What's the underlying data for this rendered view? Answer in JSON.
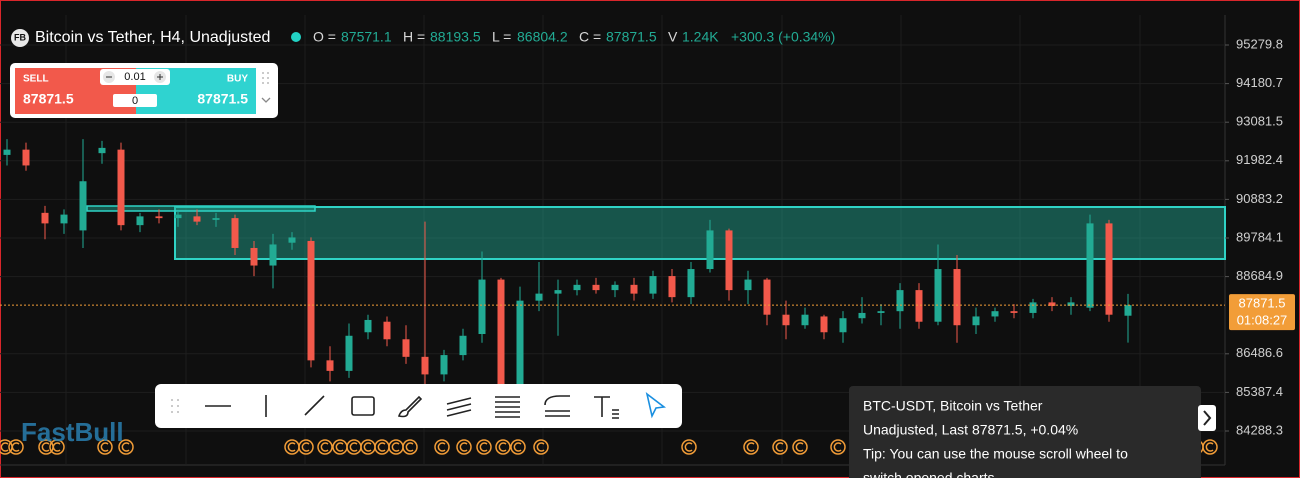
{
  "header": {
    "badge": "FB",
    "symbol": "Bitcoin vs Tether, H4, Unadjusted",
    "labels": [
      "O =",
      "H =",
      "L =",
      "C =",
      "V"
    ],
    "volume": "1.24K",
    "change": "+300.3 (+0.34%)"
  },
  "order_panel": {
    "sell": "SELL",
    "buy": "BUY",
    "lot": "0.01",
    "amount": "0"
  },
  "price_label": {
    "countdown": "01:08:27"
  },
  "tooltip": {
    "lines": [
      "BTC-USDT, Bitcoin vs Tether",
      "Unadjusted, Last 87871.5, +0.04%",
      "Tip: You can use the mouse scroll wheel to",
      "switch opened charts"
    ]
  },
  "logo": "FastBull",
  "chart_data": {
    "type": "candlestick",
    "up_color": "#22ab94",
    "down_color": "#f2594b",
    "ylim": [
      83320,
      96134
    ],
    "yticks": [
      95279.8,
      94180.7,
      93081.5,
      91982.4,
      90883.2,
      89784.1,
      88684.9,
      86486.6,
      85387.4,
      84288.3
    ],
    "grid": true,
    "candles": [
      [
        92150,
        92600,
        91850,
        92300
      ],
      [
        92300,
        92500,
        91700,
        91850
      ],
      [
        90500,
        90700,
        89750,
        90200
      ],
      [
        90200,
        90600,
        89900,
        90450
      ],
      [
        90000,
        92600,
        89500,
        91400
      ],
      [
        92200,
        92550,
        91900,
        92350
      ],
      [
        92300,
        92500,
        90000,
        90150
      ],
      [
        90150,
        90500,
        89950,
        90400
      ],
      [
        90400,
        90600,
        90200,
        90350
      ],
      [
        90350,
        90550,
        90100,
        90450
      ],
      [
        90400,
        90600,
        90150,
        90250
      ],
      [
        90300,
        90500,
        90100,
        90350
      ],
      [
        90350,
        90450,
        89300,
        89500
      ],
      [
        89500,
        89700,
        88700,
        89000
      ],
      [
        89000,
        89900,
        88350,
        89600
      ],
      [
        89650,
        89950,
        89450,
        89800
      ],
      [
        89700,
        89800,
        86100,
        86300
      ],
      [
        86300,
        86700,
        85700,
        86000
      ],
      [
        86000,
        87350,
        85800,
        87000
      ],
      [
        87100,
        87600,
        86900,
        87450
      ],
      [
        87400,
        87550,
        86700,
        86900
      ],
      [
        86900,
        87300,
        86200,
        86400
      ],
      [
        86400,
        90250,
        85600,
        85900
      ],
      [
        85900,
        86600,
        85700,
        86450
      ],
      [
        86450,
        87200,
        86300,
        87000
      ],
      [
        87050,
        89400,
        86800,
        88600
      ],
      [
        88600,
        88650,
        85300,
        85600
      ],
      [
        85600,
        88400,
        85400,
        88000
      ],
      [
        88000,
        89100,
        87700,
        88200
      ],
      [
        88200,
        88600,
        87000,
        88300
      ],
      [
        88300,
        88600,
        88150,
        88450
      ],
      [
        88450,
        88650,
        88200,
        88300
      ],
      [
        88300,
        88550,
        88100,
        88450
      ],
      [
        88450,
        88650,
        88000,
        88200
      ],
      [
        88200,
        88850,
        88050,
        88700
      ],
      [
        88700,
        88900,
        87950,
        88100
      ],
      [
        88100,
        89100,
        87900,
        88900
      ],
      [
        88900,
        90300,
        88800,
        90000
      ],
      [
        90000,
        90050,
        88000,
        88300
      ],
      [
        88300,
        88850,
        87900,
        88600
      ],
      [
        88600,
        88650,
        87300,
        87600
      ],
      [
        87600,
        88000,
        86900,
        87300
      ],
      [
        87300,
        87800,
        87200,
        87600
      ],
      [
        87550,
        87600,
        86900,
        87100
      ],
      [
        87100,
        87700,
        86800,
        87500
      ],
      [
        87500,
        88100,
        87350,
        87650
      ],
      [
        87650,
        87900,
        87300,
        87700
      ],
      [
        87700,
        88500,
        87200,
        88300
      ],
      [
        88300,
        88500,
        87200,
        87400
      ],
      [
        87400,
        89600,
        87300,
        88900
      ],
      [
        88900,
        89300,
        86800,
        87300
      ],
      [
        87300,
        87800,
        87050,
        87550
      ],
      [
        87550,
        87800,
        87400,
        87700
      ],
      [
        87700,
        87900,
        87500,
        87650
      ],
      [
        87650,
        88050,
        87500,
        87950
      ],
      [
        87950,
        88100,
        87700,
        87850
      ],
      [
        87850,
        88100,
        87600,
        87950
      ],
      [
        87800,
        90450,
        87700,
        90200
      ],
      [
        90200,
        90300,
        87400,
        87600
      ],
      [
        87571.1,
        88193.5,
        86804.2,
        87871.5
      ]
    ]
  }
}
